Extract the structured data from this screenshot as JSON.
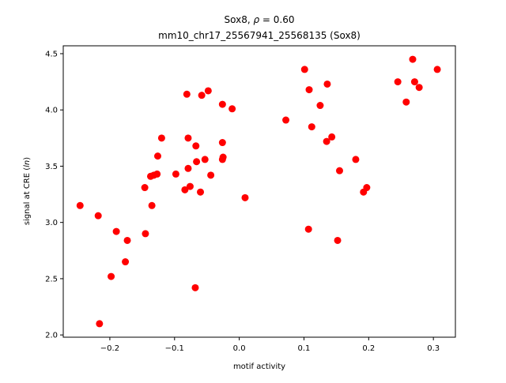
{
  "chart_data": {
    "type": "scatter",
    "title_line1_prefix": "Sox8, ",
    "title_line1_rho_symbol": "ρ",
    "title_line1_rho_value": " = 0.60",
    "title_line2": "mm10_chr17_25567941_25568135 (Sox8)",
    "xlabel": "motif activity",
    "ylabel_prefix": "signal at CRE (",
    "ylabel_italic": "ln",
    "ylabel_suffix": ")",
    "xlim": [
      -0.272,
      0.334
    ],
    "ylim": [
      1.98,
      4.57
    ],
    "xticks": [
      -0.2,
      -0.1,
      0.0,
      0.1,
      0.2,
      0.3
    ],
    "xtick_labels": [
      "−0.2",
      "−0.1",
      "0.0",
      "0.1",
      "0.2",
      "0.3"
    ],
    "yticks": [
      2.0,
      2.5,
      3.0,
      3.5,
      4.0,
      4.5
    ],
    "ytick_labels": [
      "2.0",
      "2.5",
      "3.0",
      "3.5",
      "4.0",
      "4.5"
    ],
    "marker_color": "#ff0000",
    "grid": false,
    "points": [
      {
        "x": -0.246,
        "y": 3.15
      },
      {
        "x": -0.218,
        "y": 3.06
      },
      {
        "x": -0.216,
        "y": 2.1
      },
      {
        "x": -0.198,
        "y": 2.52
      },
      {
        "x": -0.19,
        "y": 2.92
      },
      {
        "x": -0.176,
        "y": 2.65
      },
      {
        "x": -0.173,
        "y": 2.84
      },
      {
        "x": -0.146,
        "y": 3.31
      },
      {
        "x": -0.145,
        "y": 2.9
      },
      {
        "x": -0.137,
        "y": 3.41
      },
      {
        "x": -0.135,
        "y": 3.15
      },
      {
        "x": -0.132,
        "y": 3.42
      },
      {
        "x": -0.127,
        "y": 3.43
      },
      {
        "x": -0.126,
        "y": 3.59
      },
      {
        "x": -0.12,
        "y": 3.75
      },
      {
        "x": -0.098,
        "y": 3.43
      },
      {
        "x": -0.084,
        "y": 3.29
      },
      {
        "x": -0.081,
        "y": 4.14
      },
      {
        "x": -0.079,
        "y": 3.75
      },
      {
        "x": -0.079,
        "y": 3.48
      },
      {
        "x": -0.076,
        "y": 3.32
      },
      {
        "x": -0.068,
        "y": 2.42
      },
      {
        "x": -0.067,
        "y": 3.68
      },
      {
        "x": -0.066,
        "y": 3.54
      },
      {
        "x": -0.06,
        "y": 3.27
      },
      {
        "x": -0.058,
        "y": 4.13
      },
      {
        "x": -0.053,
        "y": 3.56
      },
      {
        "x": -0.048,
        "y": 4.17
      },
      {
        "x": -0.044,
        "y": 3.42
      },
      {
        "x": -0.026,
        "y": 3.71
      },
      {
        "x": -0.026,
        "y": 4.05
      },
      {
        "x": -0.026,
        "y": 3.56
      },
      {
        "x": -0.025,
        "y": 3.58
      },
      {
        "x": -0.011,
        "y": 4.01
      },
      {
        "x": 0.009,
        "y": 3.22
      },
      {
        "x": 0.072,
        "y": 3.91
      },
      {
        "x": 0.101,
        "y": 4.36
      },
      {
        "x": 0.107,
        "y": 2.94
      },
      {
        "x": 0.108,
        "y": 4.18
      },
      {
        "x": 0.112,
        "y": 3.85
      },
      {
        "x": 0.125,
        "y": 4.04
      },
      {
        "x": 0.135,
        "y": 3.72
      },
      {
        "x": 0.136,
        "y": 4.23
      },
      {
        "x": 0.143,
        "y": 3.76
      },
      {
        "x": 0.152,
        "y": 2.84
      },
      {
        "x": 0.155,
        "y": 3.46
      },
      {
        "x": 0.18,
        "y": 3.56
      },
      {
        "x": 0.192,
        "y": 3.27
      },
      {
        "x": 0.197,
        "y": 3.31
      },
      {
        "x": 0.245,
        "y": 4.25
      },
      {
        "x": 0.258,
        "y": 4.07
      },
      {
        "x": 0.268,
        "y": 4.45
      },
      {
        "x": 0.271,
        "y": 4.25
      },
      {
        "x": 0.278,
        "y": 4.2
      },
      {
        "x": 0.306,
        "y": 4.36
      }
    ]
  }
}
